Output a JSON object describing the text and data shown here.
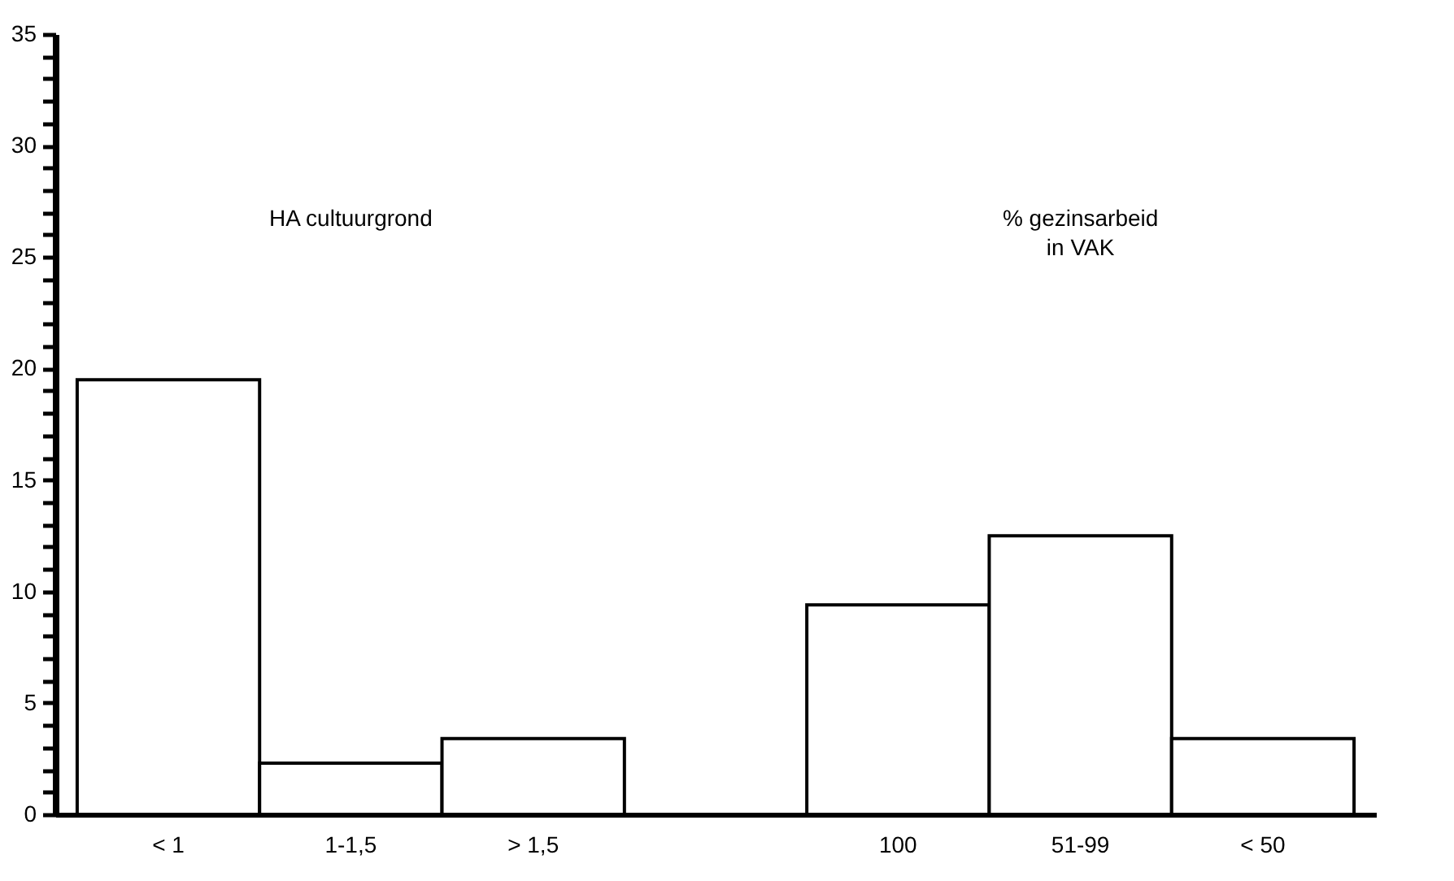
{
  "chart_data": {
    "type": "bar",
    "categories": [
      "< 1",
      "1-1,5",
      "> 1,5",
      null,
      "100",
      "51-99",
      "< 50"
    ],
    "values": [
      19.5,
      2.3,
      3.4,
      null,
      9.4,
      12.5,
      3.4
    ],
    "color": "#ffffff",
    "ylim": [
      0,
      35
    ],
    "yticks": [
      0,
      {
        "value": 1,
        "label": null
      },
      {
        "value": 2,
        "label": null
      },
      {
        "value": 3,
        "label": null
      },
      {
        "value": 4,
        "label": null
      },
      5,
      {
        "value": 6,
        "label": null
      },
      {
        "value": 7,
        "label": null
      },
      {
        "value": 8,
        "label": null
      },
      {
        "value": 9,
        "label": null
      },
      10,
      {
        "value": 11,
        "label": null
      },
      {
        "value": 12,
        "label": null
      },
      {
        "value": 13,
        "label": null
      },
      {
        "value": 14,
        "label": null
      },
      15,
      {
        "value": 16,
        "label": null
      },
      {
        "value": 17,
        "label": null
      },
      {
        "value": 18,
        "label": null
      },
      {
        "value": 19,
        "label": null
      },
      20,
      {
        "value": 21,
        "label": null
      },
      {
        "value": 22,
        "label": null
      },
      {
        "value": 23,
        "label": null
      },
      {
        "value": 24,
        "label": null
      },
      25,
      {
        "value": 26,
        "label": null
      },
      {
        "value": 27,
        "label": null
      },
      {
        "value": 28,
        "label": null
      },
      {
        "value": 29,
        "label": null
      },
      30,
      {
        "value": 31,
        "label": null
      },
      {
        "value": 32,
        "label": null
      },
      {
        "value": 33,
        "label": null
      },
      {
        "value": 34,
        "label": null
      },
      35
    ],
    "annotations": [
      "HA cultuurgrond",
      "% gezinsarbeid\nin VAK"
    ],
    "grid": false
  }
}
